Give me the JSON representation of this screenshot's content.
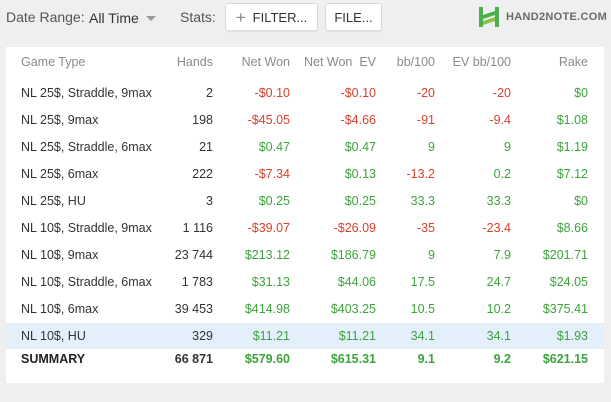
{
  "toolbar": {
    "date_range_label": "Date Range:",
    "date_range_value": "All Time",
    "stats_label": "Stats:",
    "filter_button": "FILTER...",
    "file_button": "FILE...",
    "logo_text": "HAND2NOTE.COM"
  },
  "colors": {
    "positive": "#3ea33e",
    "negative": "#d9412c",
    "highlight_row": "#e3f0fb",
    "logo_green": "#4caf50"
  },
  "table": {
    "headers": [
      "Game Type",
      "Hands",
      "Net Won",
      "Net Won  EV",
      "bb/100",
      "EV bb/100",
      "Rake"
    ],
    "rows": [
      {
        "game_type": "NL 25$, Straddle, 9max",
        "hands": "2",
        "net_won": "-$0.10",
        "net_won_ev": "-$0.10",
        "bb100": "-20",
        "ev_bb100": "-20",
        "rake": "$0"
      },
      {
        "game_type": "NL 25$, 9max",
        "hands": "198",
        "net_won": "-$45.05",
        "net_won_ev": "-$4.66",
        "bb100": "-91",
        "ev_bb100": "-9.4",
        "rake": "$1.08"
      },
      {
        "game_type": "NL 25$, Straddle, 6max",
        "hands": "21",
        "net_won": "$0.47",
        "net_won_ev": "$0.47",
        "bb100": "9",
        "ev_bb100": "9",
        "rake": "$1.19"
      },
      {
        "game_type": "NL 25$, 6max",
        "hands": "222",
        "net_won": "-$7.34",
        "net_won_ev": "$0.13",
        "bb100": "-13.2",
        "ev_bb100": "0.2",
        "rake": "$7.12"
      },
      {
        "game_type": "NL 25$, HU",
        "hands": "3",
        "net_won": "$0.25",
        "net_won_ev": "$0.25",
        "bb100": "33.3",
        "ev_bb100": "33.3",
        "rake": "$0"
      },
      {
        "game_type": "NL 10$, Straddle, 9max",
        "hands": "1 116",
        "net_won": "-$39.07",
        "net_won_ev": "-$26.09",
        "bb100": "-35",
        "ev_bb100": "-23.4",
        "rake": "$8.66"
      },
      {
        "game_type": "NL 10$, 9max",
        "hands": "23 744",
        "net_won": "$213.12",
        "net_won_ev": "$186.79",
        "bb100": "9",
        "ev_bb100": "7.9",
        "rake": "$201.71"
      },
      {
        "game_type": "NL 10$, Straddle, 6max",
        "hands": "1 783",
        "net_won": "$31.13",
        "net_won_ev": "$44.06",
        "bb100": "17.5",
        "ev_bb100": "24.7",
        "rake": "$24.05"
      },
      {
        "game_type": "NL 10$, 6max",
        "hands": "39 453",
        "net_won": "$414.98",
        "net_won_ev": "$403.25",
        "bb100": "10.5",
        "ev_bb100": "10.2",
        "rake": "$375.41"
      },
      {
        "game_type": "NL 10$, HU",
        "hands": "329",
        "net_won": "$11.21",
        "net_won_ev": "$11.21",
        "bb100": "34.1",
        "ev_bb100": "34.1",
        "rake": "$1.93"
      }
    ],
    "summary": {
      "game_type": "SUMMARY",
      "hands": "66 871",
      "net_won": "$579.60",
      "net_won_ev": "$615.31",
      "bb100": "9.1",
      "ev_bb100": "9.2",
      "rake": "$621.15"
    }
  }
}
